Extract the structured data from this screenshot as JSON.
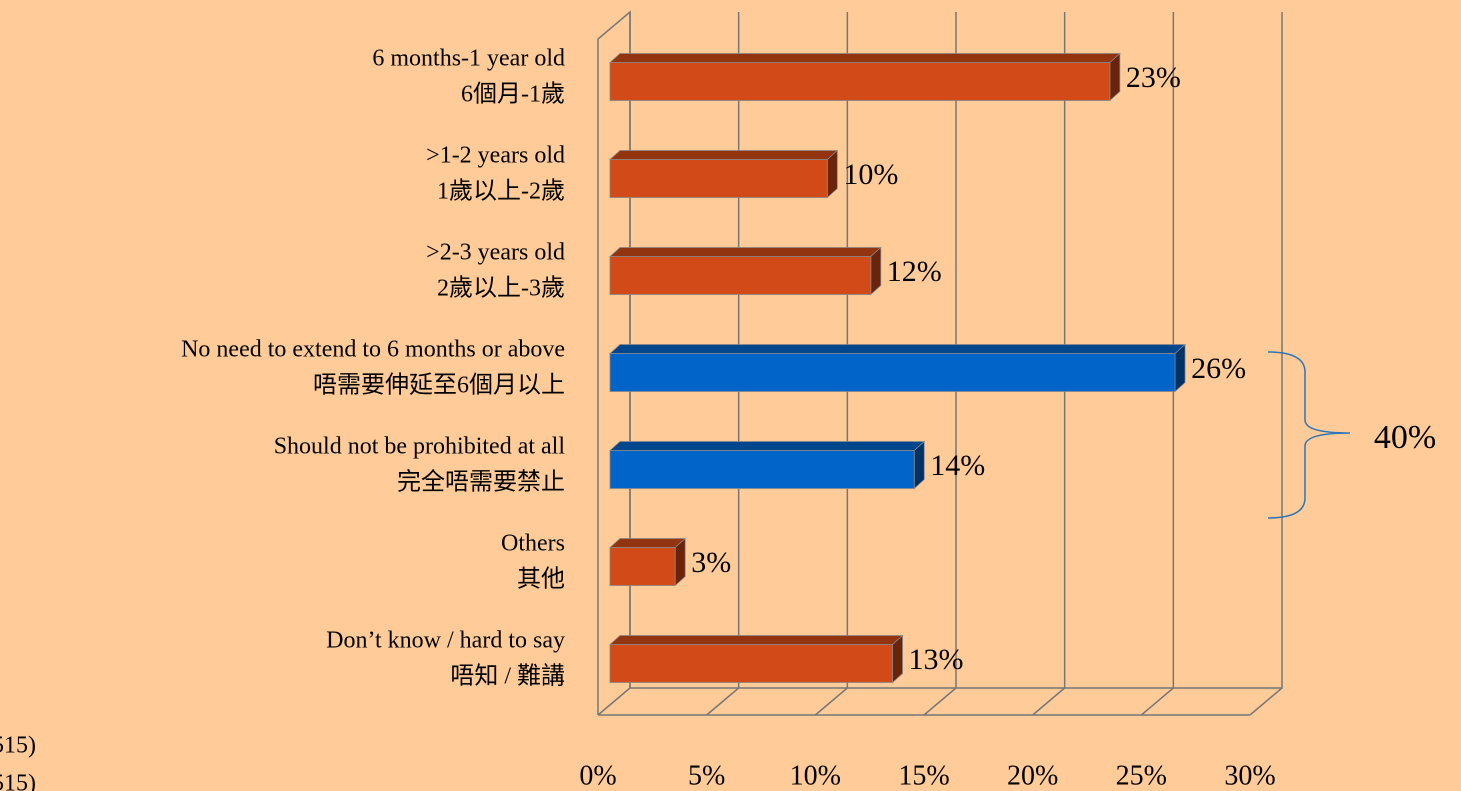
{
  "chart_data": {
    "type": "bar3d",
    "categories": [
      [
        "6 months-1 year old",
        "6個月-1歲"
      ],
      [
        ">1-2 years old",
        "1歲以上-2歲"
      ],
      [
        ">2-3 years old",
        "2歲以上-3歲"
      ],
      [
        "No need to extend to 6 months or above",
        "唔需要伸延至6個月以上"
      ],
      [
        "Should not be prohibited at all",
        "完全唔需要禁止"
      ],
      [
        "Others",
        "其他"
      ],
      [
        "Don’t know / hard to say",
        "唔知 / 難講"
      ]
    ],
    "values": [
      23,
      10,
      12,
      26,
      14,
      3,
      13
    ],
    "value_labels": [
      "23%",
      "10%",
      "12%",
      "26%",
      "14%",
      "3%",
      "13%"
    ],
    "colors": [
      "#d24a18",
      "#d24a18",
      "#d24a18",
      "#0064c8",
      "#0064c8",
      "#d24a18",
      "#d24a18"
    ],
    "xlim": [
      0,
      30
    ],
    "xticks": [
      {
        "value": 0,
        "label": "0%"
      },
      {
        "value": 5,
        "label": "5%"
      },
      {
        "value": 10,
        "label": "10%"
      },
      {
        "value": 15,
        "label": "15%"
      },
      {
        "value": 20,
        "label": "20%"
      },
      {
        "value": 25,
        "label": "25%"
      },
      {
        "value": 30,
        "label": "30%"
      }
    ],
    "grid": true,
    "annotations": [
      "40%"
    ],
    "footnotes": [
      "515)",
      "515)"
    ]
  }
}
